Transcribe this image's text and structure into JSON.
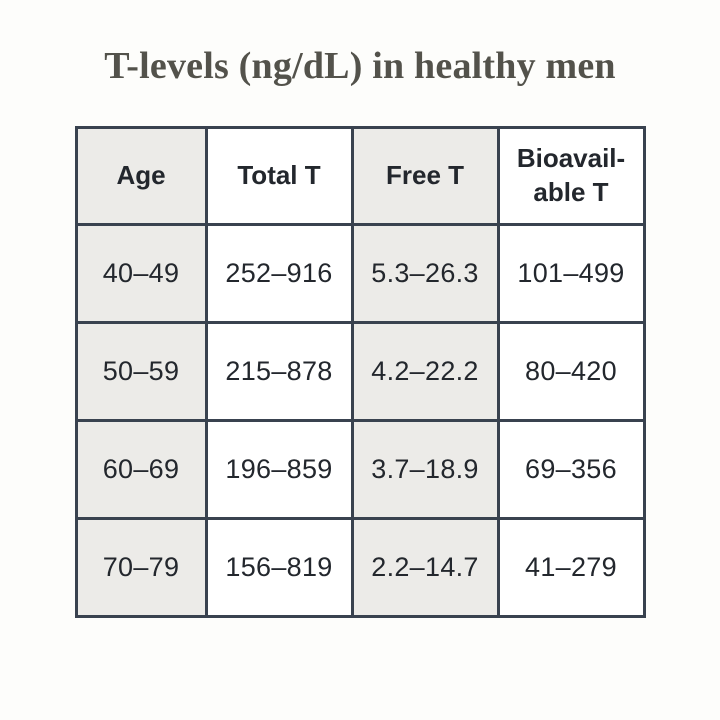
{
  "chart_data": {
    "type": "table",
    "title": "T-levels (ng/dL) in healthy men",
    "columns": [
      "Age",
      "Total T",
      "Free T",
      "Bioavailable T"
    ],
    "rows": [
      [
        "40–49",
        "252–916",
        "5.3–26.3",
        "101–499"
      ],
      [
        "50–59",
        "215–878",
        "4.2–22.2",
        "80–420"
      ],
      [
        "60–69",
        "196–859",
        "3.7–18.9",
        "69–356"
      ],
      [
        "70–79",
        "156–819",
        "2.2–14.7",
        "41–279"
      ]
    ],
    "units": "ng/dL",
    "layout_hints": {
      "shaded_columns": [
        0,
        2
      ],
      "header_row": true
    }
  },
  "display": {
    "headers": [
      "Age",
      "Total T",
      "Free T",
      "Bioavail-\nable T"
    ]
  },
  "colors": {
    "background": "#fdfdfb",
    "table_border": "#39424f",
    "shaded_cell": "#ecebe8",
    "white_cell": "#ffffff",
    "title_text": "#53524b",
    "cell_text": "#23272d"
  }
}
